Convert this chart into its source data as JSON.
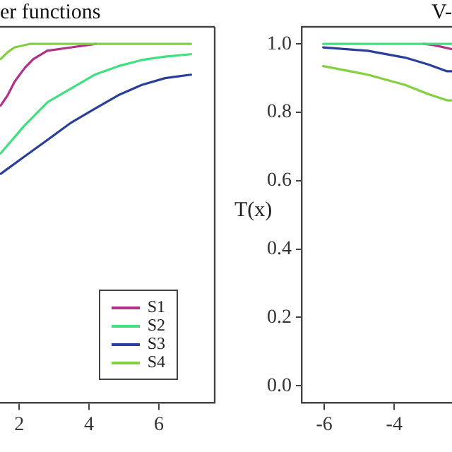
{
  "chart_data": [
    {
      "type": "line",
      "title": "er functions",
      "x": [
        1.47,
        1.67,
        1.87,
        2.16,
        2.4,
        2.8,
        3.5,
        4.2
      ],
      "xlim": [
        1.45,
        7.6
      ],
      "xticks": [
        2,
        4,
        6
      ],
      "ylim": [
        -0.05,
        1.05
      ],
      "tick_labels": "x",
      "grid": false,
      "legend": "bottom right",
      "marker": "none",
      "line_style": "solid",
      "series": [
        {
          "name": "S1",
          "color": "#b0308a",
          "values": [
            0.82,
            0.85,
            0.89,
            0.93,
            0.955,
            0.98,
            0.99,
            1.0
          ]
        },
        {
          "name": "S2",
          "color": "#40e080",
          "x": [
            1.47,
            2.14,
            2.82,
            3.49,
            4.16,
            4.84,
            5.51,
            6.18,
            6.92
          ],
          "values": [
            0.68,
            0.76,
            0.83,
            0.87,
            0.91,
            0.935,
            0.953,
            0.963,
            0.97
          ]
        },
        {
          "name": "S3",
          "color": "#2a3f9a",
          "x": [
            1.47,
            2.14,
            2.82,
            3.49,
            4.16,
            4.84,
            5.51,
            6.18,
            6.92
          ],
          "values": [
            0.62,
            0.67,
            0.72,
            0.77,
            0.81,
            0.85,
            0.88,
            0.9,
            0.91
          ]
        },
        {
          "name": "S4",
          "color": "#80d040",
          "x": [
            1.47,
            1.67,
            1.87,
            2.3,
            2.8,
            6.92
          ],
          "values": [
            0.956,
            0.976,
            0.99,
            1.0,
            1.0,
            1.0
          ]
        }
      ]
    },
    {
      "type": "line",
      "title": "V-",
      "ylabel": "T(x)",
      "x": [
        -6.03,
        -4.76,
        -3.69,
        -3.03,
        -2.49,
        -2.36
      ],
      "xlim": [
        -6.65,
        -2.35
      ],
      "xticks": [
        -6,
        -4
      ],
      "ylim": [
        -0.05,
        1.05
      ],
      "yticks": [
        {
          "value": 0,
          "label": "0.0"
        },
        {
          "value": 0.2,
          "label": "0.2"
        },
        {
          "value": 0.4,
          "label": "0.4"
        },
        {
          "value": 0.6,
          "label": "0.6"
        },
        {
          "value": 0.8,
          "label": "0.8"
        },
        {
          "value": 1.0,
          "label": "1.0"
        }
      ],
      "grid": false,
      "marker": "none",
      "line_style": "solid",
      "series": [
        {
          "color": "#b0308a",
          "x": [
            -3.16,
            -2.89,
            -2.36
          ],
          "values": [
            1.0,
            0.997,
            0.985
          ]
        },
        {
          "color": "#40e080",
          "values": [
            1.0,
            1.0,
            1.0,
            1.0,
            1.0,
            1.0
          ]
        },
        {
          "color": "#2a3f9a",
          "values": [
            0.99,
            0.98,
            0.96,
            0.94,
            0.92,
            0.92
          ]
        },
        {
          "color": "#80d040",
          "values": [
            0.935,
            0.91,
            0.88,
            0.853,
            0.835,
            0.835
          ]
        }
      ]
    }
  ]
}
